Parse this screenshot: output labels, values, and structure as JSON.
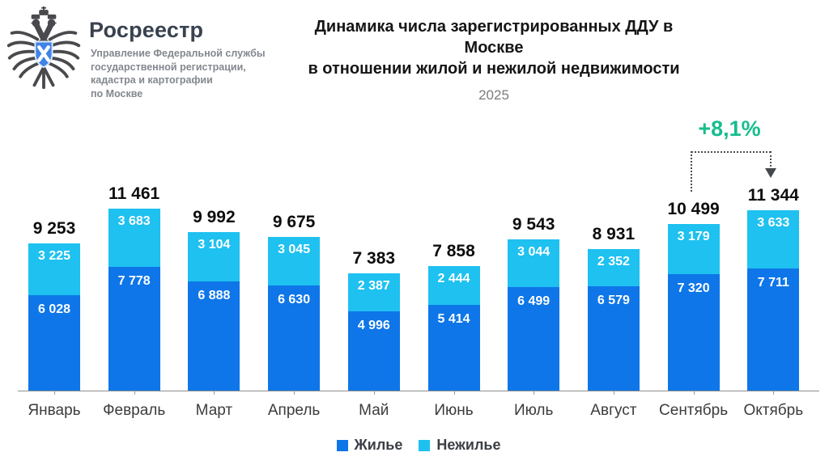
{
  "logo": {
    "brand": "Росреестр",
    "subtitle_lines": [
      "Управление Федеральной службы",
      "государственной регистрации,",
      "кадастра и картографии",
      "по Москве"
    ]
  },
  "title": {
    "line1": "Динамика числа зарегистрированных ДДУ в Москве",
    "line2": "в отношении жилой и нежилой недвижимости",
    "year": "2025"
  },
  "annotation": {
    "text": "+8,1%",
    "color": "#17bd8e"
  },
  "chart_data": {
    "type": "bar",
    "stacked": true,
    "title": "Динамика числа зарегистрированных ДДУ в Москве в отношении жилой и нежилой недвижимости",
    "subtitle": "2025",
    "categories": [
      "Январь",
      "Февраль",
      "Март",
      "Апрель",
      "Май",
      "Июнь",
      "Июль",
      "Август",
      "Сентябрь",
      "Октябрь"
    ],
    "series": [
      {
        "name": "Жилье",
        "color": "#0e76e8",
        "values": [
          6028,
          7778,
          6888,
          6630,
          4996,
          5414,
          6499,
          6579,
          7320,
          7711
        ],
        "labels": [
          "6 028",
          "7 778",
          "6 888",
          "6 630",
          "4 996",
          "5 414",
          "6 499",
          "6 579",
          "7 320",
          "7 711"
        ]
      },
      {
        "name": "Нежилье",
        "color": "#1ec1f0",
        "values": [
          3225,
          3683,
          3104,
          3045,
          2387,
          2444,
          3044,
          2352,
          3179,
          3633
        ],
        "labels": [
          "3 225",
          "3 683",
          "3 104",
          "3 045",
          "2 387",
          "2 444",
          "3 044",
          "2 352",
          "3 179",
          "3 633"
        ]
      }
    ],
    "totals": [
      9253,
      11461,
      9992,
      9675,
      7383,
      7858,
      9543,
      8931,
      10499,
      11344
    ],
    "total_labels": [
      "9 253",
      "11 461",
      "9 992",
      "9 675",
      "7 383",
      "7 858",
      "9 543",
      "8 931",
      "10 499",
      "11 344"
    ],
    "ylim": [
      0,
      11461
    ],
    "grid": false,
    "legend_position": "bottom",
    "annotation": {
      "text": "+8,1%",
      "from_category": "Сентябрь",
      "to_category": "Октябрь"
    }
  }
}
